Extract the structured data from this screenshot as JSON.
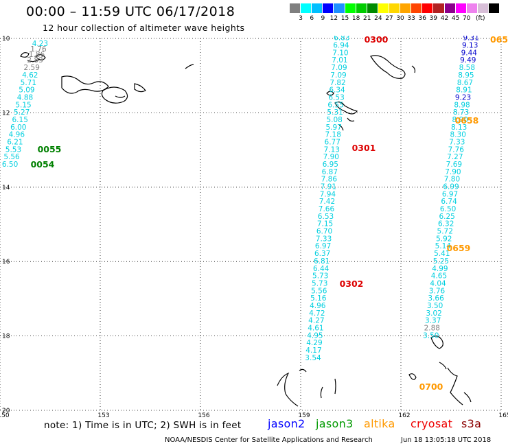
{
  "title": "00:00 – 11:59 UTC 06/17/2018",
  "subtitle": "12 hour collection of altimeter wave heights",
  "colorbar": {
    "colors": [
      "#7f7f7f",
      "#00ffff",
      "#00bfff",
      "#0000ff",
      "#1e90ff",
      "#00ff00",
      "#00cc00",
      "#008b00",
      "#ffff00",
      "#ffd700",
      "#ffa500",
      "#ff4500",
      "#ff0000",
      "#b22222",
      "#8b008b",
      "#ff00ff",
      "#ee82ee",
      "#d8bfd8",
      "#000000"
    ],
    "labels": [
      "3",
      "6",
      "9",
      "12",
      "15",
      "18",
      "21",
      "24",
      "27",
      "30",
      "33",
      "36",
      "39",
      "42",
      "45",
      "70",
      "(ft)"
    ]
  },
  "map": {
    "lon_range": [
      150,
      165
    ],
    "lat_range": [
      20,
      10
    ],
    "lon_ticks": [
      "150",
      "153",
      "156",
      "159",
      "162",
      "165"
    ],
    "lat_ticks": [
      "10",
      "12",
      "14",
      "16",
      "18",
      "20"
    ]
  },
  "tracks": [
    {
      "name": "track-0054-0055",
      "points": [
        {
          "v": "4.23",
          "c": "#00cfdf",
          "lon": 151.2,
          "lat": 10.2
        },
        {
          "v": "1.76",
          "c": "#808080",
          "lon": 151.15,
          "lat": 10.35
        },
        {
          "v": "1.86",
          "c": "#808080",
          "lon": 151.1,
          "lat": 10.5
        },
        {
          "v": "2.83",
          "c": "#808080",
          "lon": 151.05,
          "lat": 10.65
        },
        {
          "v": "2.59",
          "c": "#808080",
          "lon": 150.95,
          "lat": 10.85
        },
        {
          "v": "4.62",
          "c": "#00cfdf",
          "lon": 150.9,
          "lat": 11.05
        },
        {
          "v": "5.71",
          "c": "#00cfdf",
          "lon": 150.85,
          "lat": 11.25
        },
        {
          "v": "5.09",
          "c": "#00cfdf",
          "lon": 150.8,
          "lat": 11.45
        },
        {
          "v": "4.88",
          "c": "#00cfdf",
          "lon": 150.75,
          "lat": 11.65
        },
        {
          "v": "5.15",
          "c": "#00cfdf",
          "lon": 150.7,
          "lat": 11.85
        },
        {
          "v": "5.27",
          "c": "#00cfdf",
          "lon": 150.65,
          "lat": 12.05
        },
        {
          "v": "6.15",
          "c": "#00cfdf",
          "lon": 150.6,
          "lat": 12.25
        },
        {
          "v": "6.00",
          "c": "#00cfdf",
          "lon": 150.55,
          "lat": 12.45
        },
        {
          "v": "4.96",
          "c": "#00cfdf",
          "lon": 150.5,
          "lat": 12.65
        },
        {
          "v": "6.21",
          "c": "#00cfdf",
          "lon": 150.45,
          "lat": 12.85
        },
        {
          "v": "5.53",
          "c": "#00cfdf",
          "lon": 150.4,
          "lat": 13.05
        },
        {
          "v": "5.56",
          "c": "#00cfdf",
          "lon": 150.35,
          "lat": 13.25
        },
        {
          "v": "6.50",
          "c": "#00cfdf",
          "lon": 150.3,
          "lat": 13.45
        }
      ]
    },
    {
      "name": "track-0300-0302",
      "points": [
        {
          "v": "6.83",
          "c": "#00cfdf",
          "lon": 160.23,
          "lat": 10.05
        },
        {
          "v": "6.94",
          "c": "#00cfdf",
          "lon": 160.21,
          "lat": 10.25
        },
        {
          "v": "7.10",
          "c": "#00cfdf",
          "lon": 160.19,
          "lat": 10.45
        },
        {
          "v": "7.01",
          "c": "#00cfdf",
          "lon": 160.17,
          "lat": 10.65
        },
        {
          "v": "7.09",
          "c": "#00cfdf",
          "lon": 160.15,
          "lat": 10.85
        },
        {
          "v": "7.09",
          "c": "#00cfdf",
          "lon": 160.13,
          "lat": 11.05
        },
        {
          "v": "7.82",
          "c": "#00cfdf",
          "lon": 160.11,
          "lat": 11.25
        },
        {
          "v": "6.34",
          "c": "#00cfdf",
          "lon": 160.09,
          "lat": 11.45
        },
        {
          "v": "6.53",
          "c": "#00cfdf",
          "lon": 160.07,
          "lat": 11.65
        },
        {
          "v": "6.55",
          "c": "#00cfdf",
          "lon": 160.05,
          "lat": 11.85
        },
        {
          "v": "5.31",
          "c": "#00cfdf",
          "lon": 160.03,
          "lat": 12.05
        },
        {
          "v": "5.08",
          "c": "#00cfdf",
          "lon": 160.01,
          "lat": 12.25
        },
        {
          "v": "5.97",
          "c": "#00cfdf",
          "lon": 159.99,
          "lat": 12.45
        },
        {
          "v": "7.18",
          "c": "#00cfdf",
          "lon": 159.97,
          "lat": 12.65
        },
        {
          "v": "6.77",
          "c": "#00cfdf",
          "lon": 159.95,
          "lat": 12.85
        },
        {
          "v": "7.13",
          "c": "#00cfdf",
          "lon": 159.93,
          "lat": 13.05
        },
        {
          "v": "7.90",
          "c": "#00cfdf",
          "lon": 159.91,
          "lat": 13.25
        },
        {
          "v": "6.95",
          "c": "#00cfdf",
          "lon": 159.89,
          "lat": 13.45
        },
        {
          "v": "6.87",
          "c": "#00cfdf",
          "lon": 159.87,
          "lat": 13.65
        },
        {
          "v": "7.86",
          "c": "#00cfdf",
          "lon": 159.85,
          "lat": 13.85
        },
        {
          "v": "7.91",
          "c": "#00cfdf",
          "lon": 159.83,
          "lat": 14.05
        },
        {
          "v": "7.94",
          "c": "#00cfdf",
          "lon": 159.81,
          "lat": 14.25
        },
        {
          "v": "7.42",
          "c": "#00cfdf",
          "lon": 159.79,
          "lat": 14.45
        },
        {
          "v": "7.66",
          "c": "#00cfdf",
          "lon": 159.77,
          "lat": 14.65
        },
        {
          "v": "6.53",
          "c": "#00cfdf",
          "lon": 159.75,
          "lat": 14.85
        },
        {
          "v": "7.15",
          "c": "#00cfdf",
          "lon": 159.73,
          "lat": 15.05
        },
        {
          "v": "6.70",
          "c": "#00cfdf",
          "lon": 159.71,
          "lat": 15.25
        },
        {
          "v": "7.33",
          "c": "#00cfdf",
          "lon": 159.69,
          "lat": 15.45
        },
        {
          "v": "6.97",
          "c": "#00cfdf",
          "lon": 159.67,
          "lat": 15.65
        },
        {
          "v": "6.37",
          "c": "#00cfdf",
          "lon": 159.65,
          "lat": 15.85
        },
        {
          "v": "6.81",
          "c": "#00cfdf",
          "lon": 159.63,
          "lat": 16.05
        },
        {
          "v": "6.44",
          "c": "#00cfdf",
          "lon": 159.61,
          "lat": 16.25
        },
        {
          "v": "5.73",
          "c": "#00cfdf",
          "lon": 159.59,
          "lat": 16.45
        },
        {
          "v": "5.73",
          "c": "#00cfdf",
          "lon": 159.57,
          "lat": 16.65
        },
        {
          "v": "5.56",
          "c": "#00cfdf",
          "lon": 159.55,
          "lat": 16.85
        },
        {
          "v": "5.16",
          "c": "#00cfdf",
          "lon": 159.53,
          "lat": 17.05
        },
        {
          "v": "4.96",
          "c": "#00cfdf",
          "lon": 159.51,
          "lat": 17.25
        },
        {
          "v": "4.72",
          "c": "#00cfdf",
          "lon": 159.49,
          "lat": 17.45
        },
        {
          "v": "4.27",
          "c": "#00cfdf",
          "lon": 159.47,
          "lat": 17.65
        },
        {
          "v": "4.61",
          "c": "#00cfdf",
          "lon": 159.45,
          "lat": 17.85
        },
        {
          "v": "4.95",
          "c": "#00cfdf",
          "lon": 159.43,
          "lat": 18.05
        },
        {
          "v": "4.29",
          "c": "#00cfdf",
          "lon": 159.41,
          "lat": 18.25
        },
        {
          "v": "4.17",
          "c": "#00cfdf",
          "lon": 159.39,
          "lat": 18.45
        },
        {
          "v": "3.54",
          "c": "#00cfdf",
          "lon": 159.37,
          "lat": 18.65
        }
      ]
    },
    {
      "name": "track-0658-0700",
      "points": [
        {
          "v": "9.31",
          "c": "#0000cd",
          "lon": 164.1,
          "lat": 10.05
        },
        {
          "v": "9.13",
          "c": "#0000cd",
          "lon": 164.07,
          "lat": 10.25
        },
        {
          "v": "9.44",
          "c": "#0000cd",
          "lon": 164.04,
          "lat": 10.45
        },
        {
          "v": "9.49",
          "c": "#0000cd",
          "lon": 164.01,
          "lat": 10.65
        },
        {
          "v": "8.58",
          "c": "#00cfdf",
          "lon": 163.98,
          "lat": 10.85
        },
        {
          "v": "8.95",
          "c": "#00cfdf",
          "lon": 163.95,
          "lat": 11.05
        },
        {
          "v": "8.67",
          "c": "#00cfdf",
          "lon": 163.92,
          "lat": 11.25
        },
        {
          "v": "8.91",
          "c": "#00cfdf",
          "lon": 163.89,
          "lat": 11.45
        },
        {
          "v": "9.23",
          "c": "#0000cd",
          "lon": 163.86,
          "lat": 11.65
        },
        {
          "v": "8.98",
          "c": "#00cfdf",
          "lon": 163.83,
          "lat": 11.85
        },
        {
          "v": "8.73",
          "c": "#00cfdf",
          "lon": 163.8,
          "lat": 12.05
        },
        {
          "v": "8.90",
          "c": "#00cfdf",
          "lon": 163.77,
          "lat": 12.25
        },
        {
          "v": "8.13",
          "c": "#00cfdf",
          "lon": 163.74,
          "lat": 12.45
        },
        {
          "v": "8.30",
          "c": "#00cfdf",
          "lon": 163.71,
          "lat": 12.65
        },
        {
          "v": "7.33",
          "c": "#00cfdf",
          "lon": 163.68,
          "lat": 12.85
        },
        {
          "v": "7.76",
          "c": "#00cfdf",
          "lon": 163.65,
          "lat": 13.05
        },
        {
          "v": "7.27",
          "c": "#00cfdf",
          "lon": 163.62,
          "lat": 13.25
        },
        {
          "v": "7.69",
          "c": "#00cfdf",
          "lon": 163.59,
          "lat": 13.45
        },
        {
          "v": "7.90",
          "c": "#00cfdf",
          "lon": 163.56,
          "lat": 13.65
        },
        {
          "v": "7.80",
          "c": "#00cfdf",
          "lon": 163.53,
          "lat": 13.85
        },
        {
          "v": "6.99",
          "c": "#00cfdf",
          "lon": 163.5,
          "lat": 14.05
        },
        {
          "v": "6.97",
          "c": "#00cfdf",
          "lon": 163.47,
          "lat": 14.25
        },
        {
          "v": "6.74",
          "c": "#00cfdf",
          "lon": 163.44,
          "lat": 14.45
        },
        {
          "v": "6.50",
          "c": "#00cfdf",
          "lon": 163.41,
          "lat": 14.65
        },
        {
          "v": "6.25",
          "c": "#00cfdf",
          "lon": 163.38,
          "lat": 14.85
        },
        {
          "v": "6.32",
          "c": "#00cfdf",
          "lon": 163.35,
          "lat": 15.05
        },
        {
          "v": "5.72",
          "c": "#00cfdf",
          "lon": 163.32,
          "lat": 15.25
        },
        {
          "v": "5.92",
          "c": "#00cfdf",
          "lon": 163.29,
          "lat": 15.45
        },
        {
          "v": "5.14",
          "c": "#00cfdf",
          "lon": 163.26,
          "lat": 15.65
        },
        {
          "v": "5.41",
          "c": "#00cfdf",
          "lon": 163.23,
          "lat": 15.85
        },
        {
          "v": "5.25",
          "c": "#00cfdf",
          "lon": 163.2,
          "lat": 16.05
        },
        {
          "v": "4.99",
          "c": "#00cfdf",
          "lon": 163.17,
          "lat": 16.25
        },
        {
          "v": "4.65",
          "c": "#00cfdf",
          "lon": 163.14,
          "lat": 16.45
        },
        {
          "v": "4.04",
          "c": "#00cfdf",
          "lon": 163.11,
          "lat": 16.65
        },
        {
          "v": "3.76",
          "c": "#00cfdf",
          "lon": 163.08,
          "lat": 16.85
        },
        {
          "v": "3.66",
          "c": "#00cfdf",
          "lon": 163.05,
          "lat": 17.05
        },
        {
          "v": "3.50",
          "c": "#00cfdf",
          "lon": 163.02,
          "lat": 17.25
        },
        {
          "v": "3.02",
          "c": "#00cfdf",
          "lon": 162.99,
          "lat": 17.45
        },
        {
          "v": "3.37",
          "c": "#00cfdf",
          "lon": 162.96,
          "lat": 17.65
        },
        {
          "v": "2.88",
          "c": "#808080",
          "lon": 162.93,
          "lat": 17.85
        },
        {
          "v": "3.50",
          "c": "#00cfdf",
          "lon": 162.9,
          "lat": 18.05
        }
      ]
    }
  ],
  "time_labels": [
    {
      "t": "0055",
      "c": "#008000"
    },
    {
      "t": "0054",
      "c": "#008000"
    },
    {
      "t": "0300",
      "c": "#dd0000"
    },
    {
      "t": "0301",
      "c": "#dd0000"
    },
    {
      "t": "0302",
      "c": "#dd0000"
    },
    {
      "t": "065",
      "c": "#ff9900"
    },
    {
      "t": "0658",
      "c": "#ff9900"
    },
    {
      "t": "0659",
      "c": "#ff9900"
    },
    {
      "t": "0700",
      "c": "#ff9900"
    }
  ],
  "note": "note: 1) Time is in UTC; 2) SWH is in feet",
  "satellites": [
    {
      "name": "jason2",
      "color": "#0000ff"
    },
    {
      "name": "jason3",
      "color": "#009900"
    },
    {
      "name": "altika",
      "color": "#ff9900"
    },
    {
      "name": "cryosat",
      "color": "#ee0000"
    },
    {
      "name": "s3a",
      "color": "#8b0000"
    }
  ],
  "footer_left": "NOAA/NESDIS Center for Satellite Applications and Research",
  "footer_right": "Jun 18 13:05:18 UTC 2018"
}
